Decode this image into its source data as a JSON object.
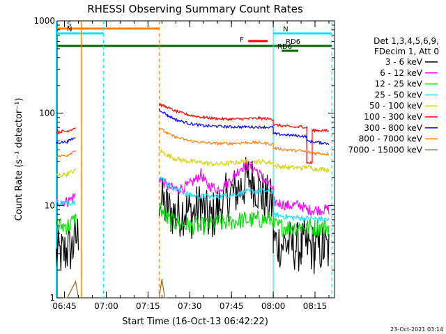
{
  "chart_data": {
    "type": "line",
    "title": "RHESSI Observing Summary Count Rates",
    "xlabel": "Start Time (16-Oct-13 06:42:22)",
    "ylabel": "Count Rate (s⁻¹ detector⁻¹)",
    "y_scale": "log",
    "ylim": [
      1,
      1000
    ],
    "x_range": [
      "06:42:22",
      "08:22:00"
    ],
    "x_ticks": [
      "06:45",
      "07:00",
      "07:15",
      "07:30",
      "07:45",
      "08:00",
      "08:15"
    ],
    "y_ticks": [
      "1",
      "10",
      "100",
      "1000"
    ],
    "legend_header": [
      "Det 1,3,4,5,6,9,",
      "FDecim 1, Att 0"
    ],
    "legend_position": "right",
    "timestamp": "23-Oct-2021 03:14",
    "flags": [
      {
        "label": "S",
        "color": "#ff7f00",
        "start": "06:42",
        "end": "07:19"
      },
      {
        "label": "N",
        "color": "#00e5ff",
        "start": "06:42",
        "end": "06:59"
      },
      {
        "label": "N",
        "color": "#00e5ff",
        "start": "08:00",
        "end": "08:21"
      },
      {
        "label": "F",
        "color": "#ff0000",
        "start": "07:51",
        "end": "07:58"
      },
      {
        "label": "RD6",
        "color": "#006400",
        "start": "06:42",
        "end": "08:21"
      },
      {
        "label": "RD6",
        "color": "#006400",
        "start": "08:03",
        "end": "08:09"
      },
      {
        "label": "RD6",
        "color": "#006400",
        "start": "08:06",
        "end": "08:12"
      }
    ],
    "markers": [
      {
        "time": "06:42",
        "color": "#00e5ff",
        "style": "solid"
      },
      {
        "time": "06:51",
        "color": "#ff7f00",
        "style": "solid"
      },
      {
        "time": "06:59",
        "color": "#00e5ff",
        "style": "dashed"
      },
      {
        "time": "07:19",
        "color": "#ff7f00",
        "style": "dashed"
      },
      {
        "time": "08:00",
        "color": "#00e5ff",
        "style": "solid"
      },
      {
        "time": "08:21",
        "color": "#00e5ff",
        "style": "dashed"
      }
    ],
    "series": [
      {
        "name": "3 - 6 keV",
        "color": "#000000",
        "noise": 0.28,
        "points": [
          [
            "06:42",
            2.8
          ],
          [
            "06:44",
            3
          ],
          [
            "06:46",
            3.2
          ],
          [
            "06:48",
            3.5
          ],
          [
            "06:50",
            5
          ],
          [
            "06:51",
            null
          ],
          [
            "07:19",
            null
          ],
          [
            "07:19",
            12
          ],
          [
            "07:22",
            9
          ],
          [
            "07:25",
            8
          ],
          [
            "07:28",
            9
          ],
          [
            "07:31",
            8
          ],
          [
            "07:34",
            10
          ],
          [
            "07:37",
            7
          ],
          [
            "07:40",
            9
          ],
          [
            "07:43",
            12
          ],
          [
            "07:46",
            14
          ],
          [
            "07:49",
            16
          ],
          [
            "07:51",
            20
          ],
          [
            "07:53",
            18
          ],
          [
            "07:56",
            13
          ],
          [
            "08:00",
            10
          ],
          [
            "08:00",
            4
          ],
          [
            "08:05",
            3.8
          ],
          [
            "08:10",
            3.5
          ],
          [
            "08:12",
            3.8
          ],
          [
            "08:15",
            3.3
          ],
          [
            "08:18",
            3.5
          ],
          [
            "08:20",
            3.2
          ],
          [
            "08:21",
            null
          ]
        ]
      },
      {
        "name": "6 - 12 keV",
        "color": "#ff00ff",
        "noise": 0.06,
        "points": [
          [
            "06:42",
            11
          ],
          [
            "06:46",
            11
          ],
          [
            "06:49",
            13
          ],
          [
            "06:51",
            null
          ],
          [
            "07:19",
            null
          ],
          [
            "07:19",
            20
          ],
          [
            "07:22",
            16
          ],
          [
            "07:25",
            15
          ],
          [
            "07:29",
            16
          ],
          [
            "07:32",
            19
          ],
          [
            "07:34",
            22
          ],
          [
            "07:36",
            17
          ],
          [
            "07:40",
            15
          ],
          [
            "07:43",
            17
          ],
          [
            "07:46",
            21
          ],
          [
            "07:48",
            25
          ],
          [
            "07:50",
            28
          ],
          [
            "07:52",
            26
          ],
          [
            "07:54",
            24
          ],
          [
            "07:56",
            20
          ],
          [
            "08:00",
            15
          ],
          [
            "08:00",
            11
          ],
          [
            "08:05",
            10
          ],
          [
            "08:10",
            10
          ],
          [
            "08:12",
            9
          ],
          [
            "08:15",
            9
          ],
          [
            "08:18",
            9
          ],
          [
            "08:20",
            9
          ],
          [
            "08:21",
            null
          ]
        ]
      },
      {
        "name": "12 - 25 keV",
        "color": "#00dd00",
        "noise": 0.1,
        "points": [
          [
            "06:42",
            6
          ],
          [
            "06:46",
            6
          ],
          [
            "06:49",
            7
          ],
          [
            "06:51",
            null
          ],
          [
            "07:19",
            null
          ],
          [
            "07:19",
            10
          ],
          [
            "07:22",
            7
          ],
          [
            "07:25",
            6.5
          ],
          [
            "07:30",
            6
          ],
          [
            "07:35",
            6
          ],
          [
            "07:40",
            6.5
          ],
          [
            "07:45",
            6.7
          ],
          [
            "07:50",
            7
          ],
          [
            "07:55",
            7
          ],
          [
            "08:00",
            7
          ],
          [
            "08:00",
            6
          ],
          [
            "08:05",
            5.8
          ],
          [
            "08:10",
            5.8
          ],
          [
            "08:15",
            5.8
          ],
          [
            "08:20",
            5.8
          ],
          [
            "08:21",
            null
          ]
        ]
      },
      {
        "name": "25 - 50 keV",
        "color": "#00e5ff",
        "noise": 0.03,
        "points": [
          [
            "06:42",
            10.5
          ],
          [
            "06:46",
            10.7
          ],
          [
            "06:49",
            11
          ],
          [
            "06:51",
            null
          ],
          [
            "07:19",
            null
          ],
          [
            "07:19",
            21
          ],
          [
            "07:22",
            17
          ],
          [
            "07:25",
            15
          ],
          [
            "07:30",
            13
          ],
          [
            "07:35",
            12.5
          ],
          [
            "07:40",
            12.5
          ],
          [
            "07:45",
            13
          ],
          [
            "07:50",
            14
          ],
          [
            "07:55",
            14.5
          ],
          [
            "08:00",
            14
          ],
          [
            "08:00",
            8
          ],
          [
            "08:05",
            7.5
          ],
          [
            "08:10",
            7.3
          ],
          [
            "08:15",
            7.2
          ],
          [
            "08:20",
            7
          ],
          [
            "08:21",
            null
          ]
        ]
      },
      {
        "name": "50 - 100 keV",
        "color": "#d4d400",
        "noise": 0.025,
        "points": [
          [
            "06:42",
            21
          ],
          [
            "06:46",
            22
          ],
          [
            "06:49",
            24
          ],
          [
            "06:51",
            null
          ],
          [
            "07:19",
            null
          ],
          [
            "07:19",
            40
          ],
          [
            "07:22",
            35
          ],
          [
            "07:25",
            32
          ],
          [
            "07:30",
            30
          ],
          [
            "07:35",
            29
          ],
          [
            "07:40",
            28
          ],
          [
            "07:45",
            29
          ],
          [
            "07:50",
            30
          ],
          [
            "07:55",
            30
          ],
          [
            "08:00",
            29
          ],
          [
            "08:00",
            27
          ],
          [
            "08:05",
            26
          ],
          [
            "08:10",
            25.5
          ],
          [
            "08:12",
            26
          ],
          [
            "08:15",
            25
          ],
          [
            "08:20",
            24.5
          ],
          [
            "08:21",
            null
          ]
        ]
      },
      {
        "name": "100 - 300 keV",
        "color": "#ff0000",
        "noise": 0.015,
        "points": [
          [
            "06:42",
            63
          ],
          [
            "06:46",
            64
          ],
          [
            "06:49",
            70
          ],
          [
            "06:51",
            null
          ],
          [
            "07:19",
            null
          ],
          [
            "07:19",
            125
          ],
          [
            "07:22",
            115
          ],
          [
            "07:25",
            105
          ],
          [
            "07:30",
            95
          ],
          [
            "07:35",
            90
          ],
          [
            "07:40",
            87
          ],
          [
            "07:45",
            86
          ],
          [
            "07:50",
            87
          ],
          [
            "07:55",
            88
          ],
          [
            "08:00",
            86
          ],
          [
            "08:00",
            75
          ],
          [
            "08:05",
            72
          ],
          [
            "08:09",
            70
          ],
          [
            "08:09",
            70
          ],
          [
            "08:10",
            72
          ],
          [
            "08:12",
            70
          ],
          [
            "08:12",
            29
          ],
          [
            "08:14",
            29
          ],
          [
            "08:14",
            65
          ],
          [
            "08:17",
            65
          ],
          [
            "08:20",
            64
          ],
          [
            "08:21",
            null
          ]
        ]
      },
      {
        "name": "300 - 800 keV",
        "color": "#0000ff",
        "noise": 0.015,
        "points": [
          [
            "06:42",
            48
          ],
          [
            "06:46",
            49
          ],
          [
            "06:49",
            55
          ],
          [
            "06:51",
            null
          ],
          [
            "07:19",
            null
          ],
          [
            "07:19",
            110
          ],
          [
            "07:22",
            95
          ],
          [
            "07:25",
            85
          ],
          [
            "07:30",
            77
          ],
          [
            "07:35",
            73
          ],
          [
            "07:40",
            72
          ],
          [
            "07:45",
            71
          ],
          [
            "07:50",
            71
          ],
          [
            "07:55",
            71
          ],
          [
            "08:00",
            70
          ],
          [
            "08:00",
            60
          ],
          [
            "08:05",
            58
          ],
          [
            "08:09",
            57
          ],
          [
            "08:12",
            56
          ],
          [
            "08:12",
            50
          ],
          [
            "08:17",
            48
          ],
          [
            "08:20",
            47
          ],
          [
            "08:21",
            null
          ]
        ]
      },
      {
        "name": "800 - 7000 keV",
        "color": "#ff7f00",
        "noise": 0.015,
        "points": [
          [
            "06:42",
            34
          ],
          [
            "06:46",
            35
          ],
          [
            "06:49",
            40
          ],
          [
            "06:51",
            null
          ],
          [
            "07:19",
            null
          ],
          [
            "07:19",
            70
          ],
          [
            "07:22",
            60
          ],
          [
            "07:25",
            55
          ],
          [
            "07:30",
            50
          ],
          [
            "07:35",
            48
          ],
          [
            "07:40",
            47
          ],
          [
            "07:45",
            47
          ],
          [
            "07:50",
            48
          ],
          [
            "07:55",
            48
          ],
          [
            "08:00",
            46
          ],
          [
            "08:00",
            42
          ],
          [
            "08:05",
            40
          ],
          [
            "08:10",
            39
          ],
          [
            "08:12",
            38
          ],
          [
            "08:15",
            37
          ],
          [
            "08:20",
            36
          ],
          [
            "08:21",
            null
          ]
        ]
      },
      {
        "name": "7000 - 15000 keV",
        "color": "#8b6914",
        "noise": 0,
        "points": [
          [
            "06:42",
            1
          ],
          [
            "06:46",
            1
          ],
          [
            "06:49",
            1.5
          ],
          [
            "06:50",
            1
          ],
          [
            "06:51",
            null
          ],
          [
            "07:19",
            null
          ],
          [
            "07:19",
            1
          ],
          [
            "07:20",
            1.6
          ],
          [
            "07:21",
            1
          ],
          [
            "07:22",
            1
          ]
        ]
      }
    ]
  }
}
